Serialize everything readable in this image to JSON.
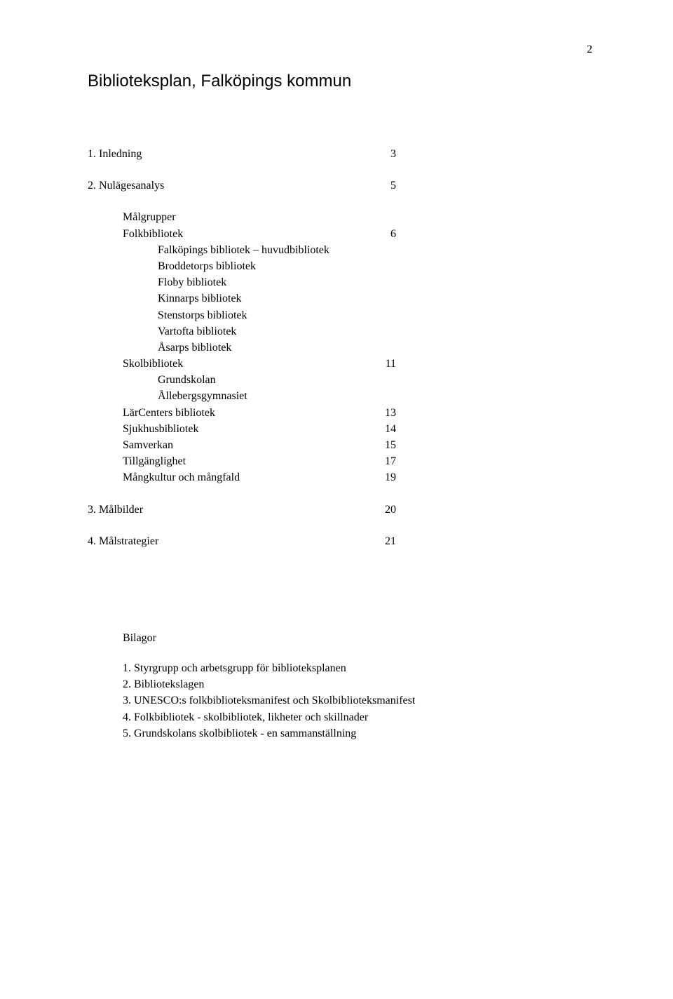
{
  "page_number": "2",
  "title": "Biblioteksplan, Falköpings kommun",
  "toc": {
    "s1": {
      "label": "1.  Inledning",
      "page": "3"
    },
    "s2": {
      "label": "2.  Nulägesanalys",
      "page": "5"
    },
    "s2_1": {
      "label": "Målgrupper"
    },
    "s2_2": {
      "label": "Folkbibliotek",
      "page": "6"
    },
    "s2_2_1": {
      "label": "Falköpings bibliotek – huvudbibliotek"
    },
    "s2_2_2": {
      "label": "Broddetorps bibliotek"
    },
    "s2_2_3": {
      "label": "Floby bibliotek"
    },
    "s2_2_4": {
      "label": "Kinnarps bibliotek"
    },
    "s2_2_5": {
      "label": "Stenstorps bibliotek"
    },
    "s2_2_6": {
      "label": "Vartofta bibliotek"
    },
    "s2_2_7": {
      "label": "Åsarps bibliotek"
    },
    "s2_3": {
      "label": "Skolbibliotek",
      "page": "11"
    },
    "s2_3_1": {
      "label": "Grundskolan"
    },
    "s2_3_2": {
      "label": "Ållebergsgymnasiet"
    },
    "s2_4": {
      "label": "LärCenters bibliotek",
      "page": "13"
    },
    "s2_5": {
      "label": "Sjukhusbibliotek",
      "page": "14"
    },
    "s2_6": {
      "label": "Samverkan",
      "page": "15"
    },
    "s2_7": {
      "label": "Tillgänglighet",
      "page": "17"
    },
    "s2_8": {
      "label": "Mångkultur och mångfald",
      "page": "19"
    },
    "s3": {
      "label": "3. Målbilder",
      "page": "20"
    },
    "s4": {
      "label": "4. Målstrategier",
      "page": "21"
    }
  },
  "attachments": {
    "heading": "Bilagor",
    "items": {
      "a1": "1. Styrgrupp och arbetsgrupp för biblioteksplanen",
      "a2": "2. Bibliotekslagen",
      "a3": "3. UNESCO:s folkbiblioteksmanifest och Skolbiblioteksmanifest",
      "a4": "4. Folkbibliotek - skolbibliotek, likheter och skillnader",
      "a5": "5. Grundskolans skolbibliotek - en sammanställning"
    }
  }
}
